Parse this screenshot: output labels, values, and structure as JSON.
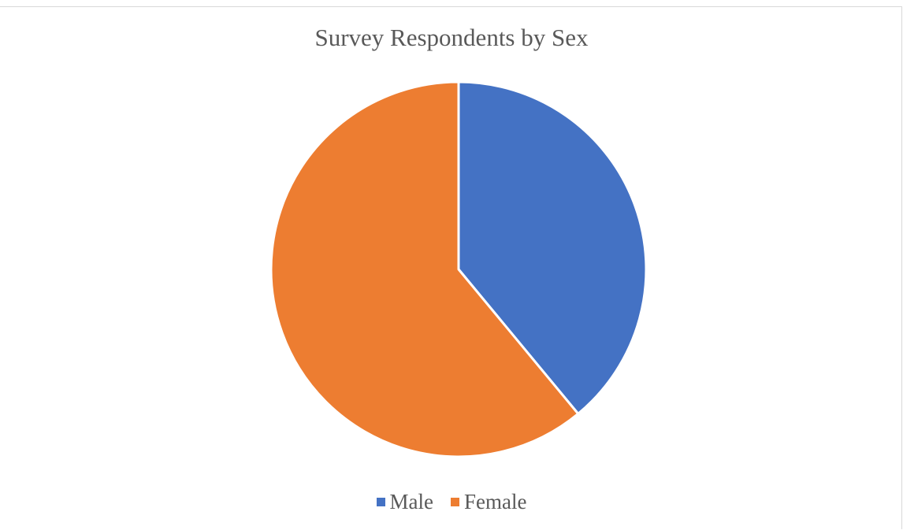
{
  "chart_data": {
    "type": "pie",
    "title": "Survey Respondents by Sex",
    "categories": [
      "Male",
      "Female"
    ],
    "values": [
      39,
      61
    ],
    "colors": [
      "#4472C4",
      "#ED7D31"
    ],
    "start_angle": "12 o'clock, clockwise",
    "legend_position": "bottom"
  }
}
